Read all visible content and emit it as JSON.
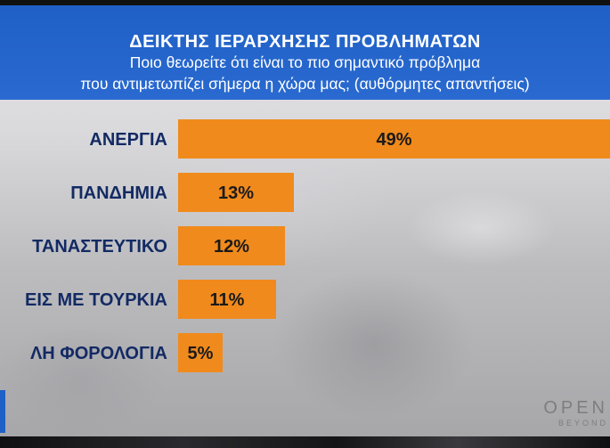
{
  "header": {
    "title": "ΔΕΙΚΤΗΣ ΙΕΡΑΡΧΗΣΗΣ ΠΡΟΒΛΗΜΑΤΩΝ",
    "subtitle_line1": "Ποιο θεωρείτε ότι είναι το πιο σημαντικό πρόβλημα",
    "subtitle_line2": "που αντιμετωπίζει σήμερα η χώρα μας; (αυθόρμητες απαντήσεις)"
  },
  "chart_data": {
    "type": "bar",
    "orientation": "horizontal",
    "title": "ΔΕΙΚΤΗΣ ΙΕΡΑΡΧΗΣΗΣ ΠΡΟΒΛΗΜΑΤΩΝ",
    "categories": [
      "ΑΝΕΡΓΙΑ",
      "ΠΑΝΔΗΜΙΑ",
      "ΤΑΝΑΣΤΕΥΤΙΚΟ",
      "ΕΙΣ ΜΕ ΤΟΥΡΚΙΑ",
      "ΛΗ ΦΟΡΟΛΟΓΙΑ"
    ],
    "values": [
      49,
      13,
      12,
      11,
      5
    ],
    "value_labels": [
      "49%",
      "13%",
      "12%",
      "11%",
      "5%"
    ],
    "unit": "%",
    "bar_color": "#f08a1c",
    "label_color": "#132a63",
    "grid": false,
    "legend": "none"
  },
  "branding": {
    "logo_text": "OPEN",
    "logo_sub": "BEYOND"
  },
  "colors": {
    "header_blue": "#1f60c6",
    "bar_orange": "#f08a1c"
  }
}
